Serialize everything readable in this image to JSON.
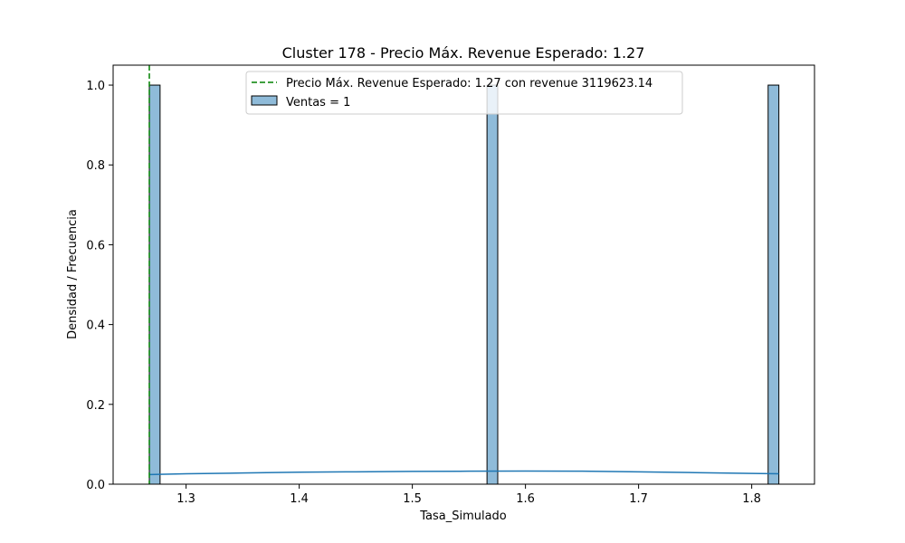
{
  "chart_data": {
    "type": "bar",
    "title": "Cluster 178 - Precio Máx. Revenue Esperado: 1.27",
    "xlabel": "Tasa_Simulado",
    "ylabel": "Densidad / Frecuencia",
    "xlim": [
      1.2355,
      1.8555
    ],
    "ylim": [
      0,
      1.05
    ],
    "xticks": [
      1.3,
      1.4,
      1.5,
      1.6,
      1.7,
      1.8
    ],
    "xtick_labels": [
      "1.3",
      "1.4",
      "1.5",
      "1.6",
      "1.7",
      "1.8"
    ],
    "yticks": [
      0.0,
      0.2,
      0.4,
      0.6,
      0.8,
      1.0
    ],
    "ytick_labels": [
      "0.0",
      "0.2",
      "0.4",
      "0.6",
      "0.8",
      "1.0"
    ],
    "grid": false,
    "legend_position": "top-center",
    "histogram": {
      "name": "Ventas = 1",
      "color": "#1f77b4",
      "bins": [
        {
          "x0": 1.2675,
          "x1": 1.277,
          "value": 1
        },
        {
          "x0": 1.566,
          "x1": 1.5755,
          "value": 1
        },
        {
          "x0": 1.8145,
          "x1": 1.824,
          "value": 1
        }
      ]
    },
    "kde": {
      "color": "#1f77b4",
      "x": [
        1.2675,
        1.3,
        1.35,
        1.4,
        1.45,
        1.5,
        1.55,
        1.6,
        1.65,
        1.7,
        1.75,
        1.8,
        1.824
      ],
      "y": [
        0.024,
        0.026,
        0.028,
        0.03,
        0.031,
        0.032,
        0.0325,
        0.033,
        0.0325,
        0.031,
        0.029,
        0.027,
        0.026
      ]
    },
    "reference_line": {
      "x": 1.2675,
      "name": "Precio Máx. Revenue Esperado: 1.27 con revenue 3119623.14",
      "color": "#008000",
      "style": "dashed"
    }
  }
}
